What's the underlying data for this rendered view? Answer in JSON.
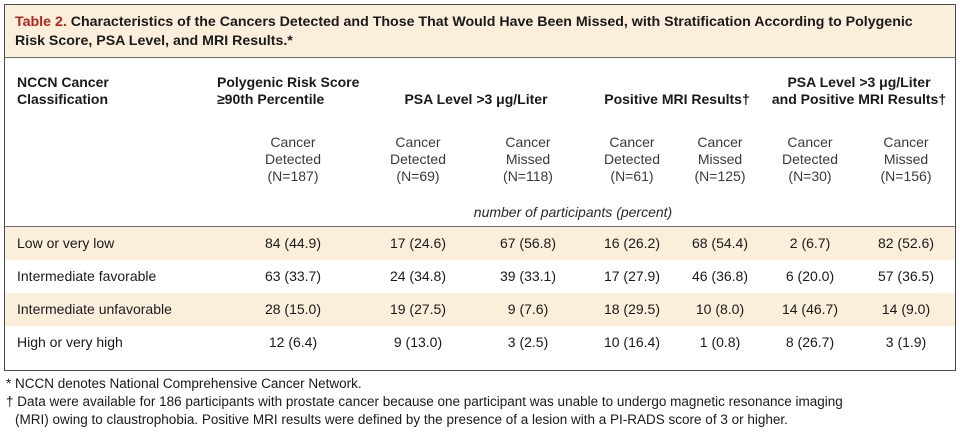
{
  "table": {
    "title_num": "Table 2.",
    "title_text": " Characteristics of the Cancers Detected and Those That Would Have Been Missed, with Stratification According to Polygenic Risk Score, PSA Level, and MRI Results.*",
    "col0_header": [
      "NCCN Cancer",
      "Classification"
    ],
    "group_headers": {
      "prs": [
        "Polygenic Risk Score",
        "≥90th Percentile"
      ],
      "psa": "PSA Level >3 μg/Liter",
      "mri": "Positive MRI Results†",
      "psa_mri": [
        "PSA Level >3 μg/Liter",
        "and Positive MRI Results†"
      ]
    },
    "sub_headers": [
      [
        "Cancer",
        "Detected",
        "(N=187)"
      ],
      [
        "Cancer",
        "Detected",
        "(N=69)"
      ],
      [
        "Cancer",
        "Missed",
        "(N=118)"
      ],
      [
        "Cancer",
        "Detected",
        "(N=61)"
      ],
      [
        "Cancer",
        "Missed",
        "(N=125)"
      ],
      [
        "Cancer",
        "Detected",
        "(N=30)"
      ],
      [
        "Cancer",
        "Missed",
        "(N=156)"
      ]
    ],
    "units": "number of participants (percent)",
    "rows": [
      {
        "label": "Low or very low",
        "values": [
          "84 (44.9)",
          "17 (24.6)",
          "67 (56.8)",
          "16 (26.2)",
          "68 (54.4)",
          "2 (6.7)",
          "82 (52.6)"
        ]
      },
      {
        "label": "Intermediate favorable",
        "values": [
          "63 (33.7)",
          "24 (34.8)",
          "39 (33.1)",
          "17 (27.9)",
          "46 (36.8)",
          "6 (20.0)",
          "57 (36.5)"
        ]
      },
      {
        "label": "Intermediate unfavorable",
        "values": [
          "28 (15.0)",
          "19 (27.5)",
          "9 (7.6)",
          "18 (29.5)",
          "10 (8.0)",
          "14 (46.7)",
          "14 (9.0)"
        ]
      },
      {
        "label": "High or very high",
        "values": [
          "12 (6.4)",
          "9 (13.0)",
          "3 (2.5)",
          "10 (16.4)",
          "1 (0.8)",
          "8 (26.7)",
          "3 (1.9)"
        ]
      }
    ]
  },
  "footnotes": {
    "star": "* NCCN denotes National Comprehensive Cancer Network.",
    "dagger_line1": "† Data were available for 186 participants with prostate cancer because one participant was unable to undergo magnetic resonance imaging",
    "dagger_line2": "(MRI) owing to claustrophobia. Positive MRI results were defined by the presence of a lesion with a PI-RADS score of 3 or higher."
  },
  "colors": {
    "title_accent": "#b5241f",
    "band_fill": "#fbeedb",
    "rule": "#6a6a6a"
  }
}
